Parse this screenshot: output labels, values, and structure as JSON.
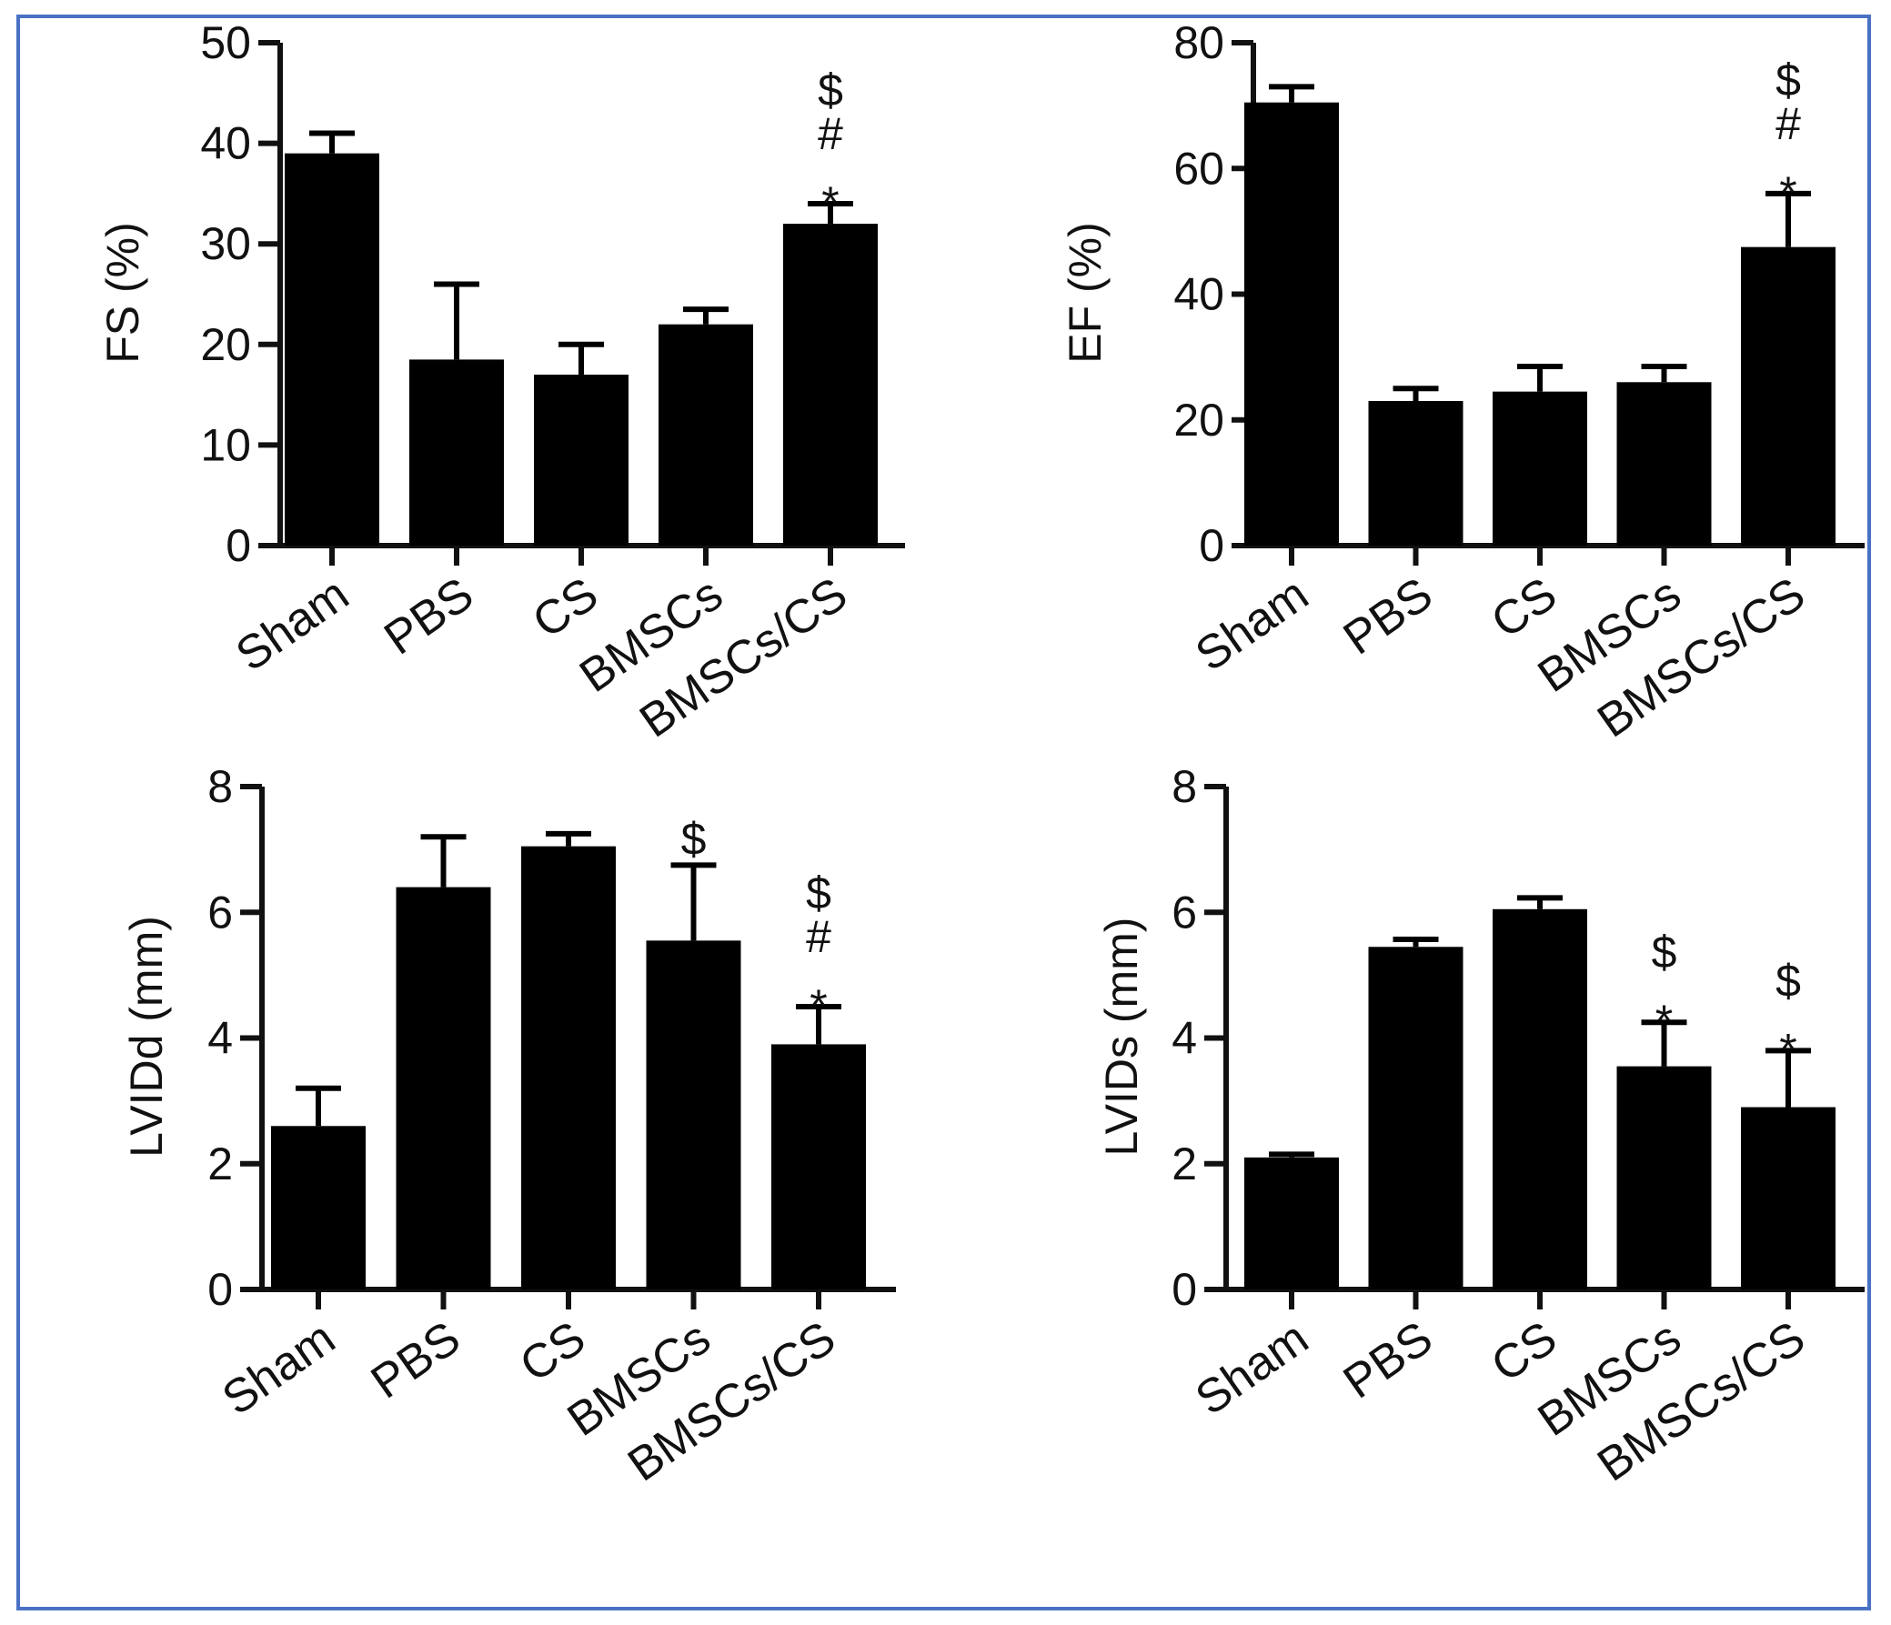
{
  "chart_data": [
    {
      "type": "bar",
      "ylabel": "FS (%)",
      "ylim": [
        0,
        50
      ],
      "yticks": [
        "0",
        "10",
        "20",
        "30",
        "40",
        "50"
      ],
      "categories": [
        "Sham",
        "PBS",
        "CS",
        "BMSCs",
        "BMSCs/CS"
      ],
      "values": [
        39,
        18.5,
        17,
        22,
        32
      ],
      "errors": [
        2,
        7.5,
        3,
        1.5,
        2
      ],
      "annotations": [
        "",
        "",
        "",
        "",
        "*\n#\n$"
      ]
    },
    {
      "type": "bar",
      "ylabel": "EF (%)",
      "ylim": [
        0,
        80
      ],
      "yticks": [
        "0",
        "20",
        "40",
        "60",
        "80"
      ],
      "categories": [
        "Sham",
        "PBS",
        "CS",
        "BMSCs",
        "BMSCs/CS"
      ],
      "values": [
        70.5,
        23,
        24.5,
        26,
        47.5
      ],
      "errors": [
        2.5,
        2,
        4,
        2.5,
        8.5
      ],
      "annotations": [
        "",
        "",
        "",
        "",
        "*\n#\n$"
      ]
    },
    {
      "type": "bar",
      "ylabel": "LVIDd (mm)",
      "ylim": [
        0,
        8
      ],
      "yticks": [
        "0",
        "2",
        "4",
        "6",
        "8"
      ],
      "categories": [
        "Sham",
        "PBS",
        "CS",
        "BMSCs",
        "BMSCs/CS"
      ],
      "values": [
        2.6,
        6.4,
        7.05,
        5.55,
        3.9
      ],
      "errors": [
        0.6,
        0.8,
        0.2,
        1.2,
        0.6
      ],
      "annotations": [
        "",
        "",
        "",
        "$",
        "*\n#\n$"
      ]
    },
    {
      "type": "bar",
      "ylabel": "LVIDs (mm)",
      "ylim": [
        0,
        8
      ],
      "yticks": [
        "0",
        "2",
        "4",
        "6",
        "8"
      ],
      "categories": [
        "Sham",
        "PBS",
        "CS",
        "BMSCs",
        "BMSCs/CS"
      ],
      "values": [
        2.1,
        5.45,
        6.05,
        3.55,
        2.9
      ],
      "errors": [
        0.05,
        0.12,
        0.18,
        0.7,
        0.9
      ],
      "annotations": [
        "",
        "",
        "",
        "*\n$",
        "*\n$"
      ]
    }
  ],
  "colors": {
    "bar": "#000000",
    "frame": "#4a72c4",
    "axis": "#111111"
  }
}
